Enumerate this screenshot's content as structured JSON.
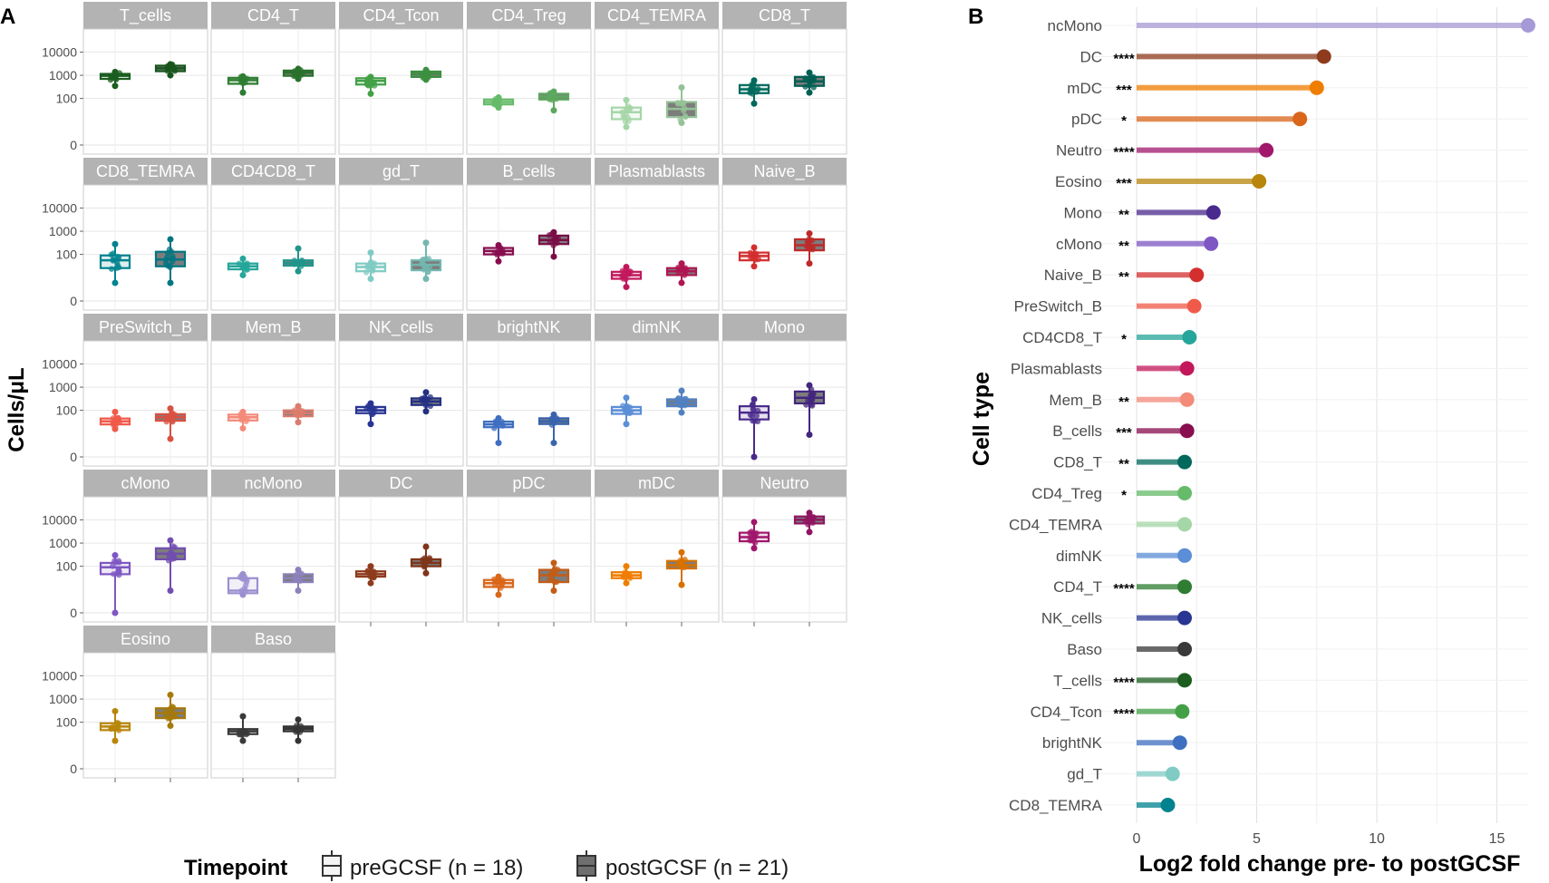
{
  "chart_data": [
    {
      "type": "boxplot",
      "panel_label": "A",
      "ylabel": "Cells/μL",
      "yscale": "pseudo-log",
      "y_ticks": [
        0,
        100,
        1000,
        10000
      ],
      "y_tick_labels": [
        "0",
        "100",
        "1000",
        "10000"
      ],
      "legend": {
        "title": "Timepoint",
        "entries": [
          "preGCSF (n = 18)",
          "postGCSF (n = 21)"
        ]
      },
      "panels": [
        {
          "name": "T_cells",
          "color": "#1b5e20",
          "pre": {
            "q1": 700,
            "med": 950,
            "q3": 1150,
            "lo": 350,
            "hi": 1400
          },
          "post": {
            "q1": 1500,
            "med": 2000,
            "q3": 2600,
            "lo": 1000,
            "hi": 3000
          }
        },
        {
          "name": "CD4_T",
          "color": "#2e7d32",
          "pre": {
            "q1": 430,
            "med": 620,
            "q3": 780,
            "lo": 180,
            "hi": 900
          },
          "post": {
            "q1": 950,
            "med": 1300,
            "q3": 1600,
            "lo": 700,
            "hi": 1900
          }
        },
        {
          "name": "CD4_Tcon",
          "color": "#43a047",
          "pre": {
            "q1": 400,
            "med": 580,
            "q3": 750,
            "lo": 160,
            "hi": 850
          },
          "post": {
            "q1": 850,
            "med": 1150,
            "q3": 1450,
            "lo": 650,
            "hi": 1700
          }
        },
        {
          "name": "CD4_Treg",
          "color": "#66bb6a",
          "pre": {
            "q1": 55,
            "med": 70,
            "q3": 90,
            "lo": 40,
            "hi": 110
          },
          "post": {
            "q1": 90,
            "med": 120,
            "q3": 160,
            "lo": 30,
            "hi": 200
          }
        },
        {
          "name": "CD4_TEMRA",
          "color": "#a5d6a7",
          "pre": {
            "q1": 12,
            "med": 25,
            "q3": 40,
            "lo": 5,
            "hi": 85
          },
          "post": {
            "q1": 15,
            "med": 35,
            "q3": 70,
            "lo": 8,
            "hi": 300
          }
        },
        {
          "name": "CD8_T",
          "color": "#00695c",
          "pre": {
            "q1": 170,
            "med": 250,
            "q3": 380,
            "lo": 60,
            "hi": 600
          },
          "post": {
            "q1": 350,
            "med": 550,
            "q3": 850,
            "lo": 180,
            "hi": 1300
          }
        },
        {
          "name": "CD8_TEMRA",
          "color": "#00838f",
          "pre": {
            "q1": 25,
            "med": 55,
            "q3": 90,
            "lo": 5,
            "hi": 280
          },
          "post": {
            "q1": 30,
            "med": 60,
            "q3": 130,
            "lo": 5,
            "hi": 450
          }
        },
        {
          "name": "CD4CD8_T",
          "color": "#26a69a",
          "pre": {
            "q1": 22,
            "med": 30,
            "q3": 40,
            "lo": 12,
            "hi": 65
          },
          "post": {
            "q1": 32,
            "med": 42,
            "q3": 55,
            "lo": 18,
            "hi": 180
          }
        },
        {
          "name": "gd_T",
          "color": "#80cbc4",
          "pre": {
            "q1": 18,
            "med": 28,
            "q3": 40,
            "lo": 8,
            "hi": 120
          },
          "post": {
            "q1": 20,
            "med": 35,
            "q3": 55,
            "lo": 8,
            "hi": 320
          }
        },
        {
          "name": "B_cells",
          "color": "#880e4f",
          "pre": {
            "q1": 100,
            "med": 140,
            "q3": 190,
            "lo": 50,
            "hi": 250
          },
          "post": {
            "q1": 280,
            "med": 420,
            "q3": 650,
            "lo": 80,
            "hi": 900
          }
        },
        {
          "name": "Plasmablasts",
          "color": "#c2185b",
          "pre": {
            "q1": 8,
            "med": 12,
            "q3": 17,
            "lo": 3,
            "hi": 28
          },
          "post": {
            "q1": 12,
            "med": 18,
            "q3": 25,
            "lo": 5,
            "hi": 40
          }
        },
        {
          "name": "Naive_B",
          "color": "#d32f2f",
          "pre": {
            "q1": 55,
            "med": 85,
            "q3": 120,
            "lo": 30,
            "hi": 200
          },
          "post": {
            "q1": 150,
            "med": 250,
            "q3": 450,
            "lo": 40,
            "hi": 800
          }
        },
        {
          "name": "PreSwitch_B",
          "color": "#f05a4a",
          "pre": {
            "q1": 24,
            "med": 33,
            "q3": 44,
            "lo": 15,
            "hi": 85
          },
          "post": {
            "q1": 35,
            "med": 50,
            "q3": 68,
            "lo": 5,
            "hi": 120
          }
        },
        {
          "name": "Mem_B",
          "color": "#f48a7a",
          "pre": {
            "q1": 36,
            "med": 50,
            "q3": 65,
            "lo": 16,
            "hi": 85
          },
          "post": {
            "q1": 55,
            "med": 75,
            "q3": 100,
            "lo": 30,
            "hi": 150
          }
        },
        {
          "name": "NK_cells",
          "color": "#283593",
          "pre": {
            "q1": 75,
            "med": 100,
            "q3": 140,
            "lo": 25,
            "hi": 200
          },
          "post": {
            "q1": 170,
            "med": 240,
            "q3": 330,
            "lo": 90,
            "hi": 600
          }
        },
        {
          "name": "brightNK",
          "color": "#3f6fc0",
          "pre": {
            "q1": 18,
            "med": 24,
            "q3": 32,
            "lo": 3,
            "hi": 45
          },
          "post": {
            "q1": 25,
            "med": 33,
            "q3": 45,
            "lo": 3,
            "hi": 65
          }
        },
        {
          "name": "dimNK",
          "color": "#5b8ed6",
          "pre": {
            "q1": 70,
            "med": 100,
            "q3": 140,
            "lo": 25,
            "hi": 350
          },
          "post": {
            "q1": 150,
            "med": 210,
            "q3": 300,
            "lo": 80,
            "hi": 700
          }
        },
        {
          "name": "Mono",
          "color": "#4a2a8c",
          "pre": {
            "q1": 40,
            "med": 80,
            "q3": 150,
            "lo": 0,
            "hi": 300
          },
          "post": {
            "q1": 200,
            "med": 350,
            "q3": 650,
            "lo": 8,
            "hi": 1200
          }
        },
        {
          "name": "cMono",
          "color": "#7e57c2",
          "pre": {
            "q1": 45,
            "med": 90,
            "q3": 140,
            "lo": 0,
            "hi": 300
          },
          "post": {
            "q1": 200,
            "med": 350,
            "q3": 600,
            "lo": 8,
            "hi": 1300
          }
        },
        {
          "name": "ncMono",
          "color": "#9c8fd0",
          "pre": {
            "q1": 6,
            "med": 8,
            "q3": 30,
            "lo": 5,
            "hi": 45
          },
          "post": {
            "q1": 20,
            "med": 30,
            "q3": 45,
            "lo": 8,
            "hi": 70
          }
        },
        {
          "name": "DC",
          "color": "#8d3b1c",
          "pre": {
            "q1": 35,
            "med": 45,
            "q3": 60,
            "lo": 18,
            "hi": 100
          },
          "post": {
            "q1": 100,
            "med": 140,
            "q3": 200,
            "lo": 50,
            "hi": 700
          }
        },
        {
          "name": "pDC",
          "color": "#d9661a",
          "pre": {
            "q1": 12,
            "med": 18,
            "q3": 25,
            "lo": 5,
            "hi": 35
          },
          "post": {
            "q1": 20,
            "med": 40,
            "q3": 70,
            "lo": 8,
            "hi": 140
          }
        },
        {
          "name": "mDC",
          "color": "#ef7d00",
          "pre": {
            "q1": 30,
            "med": 40,
            "q3": 55,
            "lo": 18,
            "hi": 100
          },
          "post": {
            "q1": 80,
            "med": 110,
            "q3": 170,
            "lo": 15,
            "hi": 400
          }
        },
        {
          "name": "Neutro",
          "color": "#a0176c",
          "pre": {
            "q1": 1200,
            "med": 1800,
            "q3": 2800,
            "lo": 600,
            "hi": 8000
          },
          "post": {
            "q1": 7000,
            "med": 10000,
            "q3": 14000,
            "lo": 3000,
            "hi": 20000
          }
        },
        {
          "name": "Eosino",
          "color": "#b8860b",
          "pre": {
            "q1": 45,
            "med": 65,
            "q3": 90,
            "lo": 15,
            "hi": 300
          },
          "post": {
            "q1": 150,
            "med": 250,
            "q3": 400,
            "lo": 70,
            "hi": 1500
          }
        },
        {
          "name": "Baso",
          "color": "#3a3a3a",
          "pre": {
            "q1": 30,
            "med": 40,
            "q3": 50,
            "lo": 15,
            "hi": 180
          },
          "post": {
            "q1": 40,
            "med": 52,
            "q3": 65,
            "lo": 15,
            "hi": 130
          }
        }
      ]
    },
    {
      "type": "lollipop",
      "panel_label": "B",
      "ylabel": "Cell type",
      "xlabel": "Log2 fold change pre- to postGCSF",
      "xlim": [
        -1,
        16.3
      ],
      "x_ticks": [
        0,
        5,
        10,
        15
      ],
      "grid": true,
      "items": [
        {
          "name": "ncMono",
          "value": 16.3,
          "sig": "",
          "color": "#a59ad6"
        },
        {
          "name": "DC",
          "value": 7.8,
          "sig": "****",
          "color": "#8d3b1c"
        },
        {
          "name": "mDC",
          "value": 7.5,
          "sig": "***",
          "color": "#ef7d00"
        },
        {
          "name": "pDC",
          "value": 6.8,
          "sig": "*",
          "color": "#d9661a"
        },
        {
          "name": "Neutro",
          "value": 5.4,
          "sig": "****",
          "color": "#a0176c"
        },
        {
          "name": "Eosino",
          "value": 5.1,
          "sig": "***",
          "color": "#b8860b"
        },
        {
          "name": "Mono",
          "value": 3.2,
          "sig": "**",
          "color": "#4a2a8c"
        },
        {
          "name": "cMono",
          "value": 3.1,
          "sig": "**",
          "color": "#7e57c2"
        },
        {
          "name": "Naive_B",
          "value": 2.5,
          "sig": "**",
          "color": "#d32f2f"
        },
        {
          "name": "PreSwitch_B",
          "value": 2.4,
          "sig": "",
          "color": "#f05a4a"
        },
        {
          "name": "CD4CD8_T",
          "value": 2.2,
          "sig": "*",
          "color": "#26a69a"
        },
        {
          "name": "Plasmablasts",
          "value": 2.1,
          "sig": "",
          "color": "#c2185b"
        },
        {
          "name": "Mem_B",
          "value": 2.1,
          "sig": "**",
          "color": "#f48a7a"
        },
        {
          "name": "B_cells",
          "value": 2.1,
          "sig": "***",
          "color": "#880e4f"
        },
        {
          "name": "CD8_T",
          "value": 2.0,
          "sig": "**",
          "color": "#00695c"
        },
        {
          "name": "CD4_Treg",
          "value": 2.0,
          "sig": "*",
          "color": "#66bb6a"
        },
        {
          "name": "CD4_TEMRA",
          "value": 2.0,
          "sig": "",
          "color": "#a5d6a7"
        },
        {
          "name": "dimNK",
          "value": 2.0,
          "sig": "",
          "color": "#5b8ed6"
        },
        {
          "name": "CD4_T",
          "value": 2.0,
          "sig": "****",
          "color": "#2e7d32"
        },
        {
          "name": "NK_cells",
          "value": 2.0,
          "sig": "",
          "color": "#283593"
        },
        {
          "name": "Baso",
          "value": 2.0,
          "sig": "",
          "color": "#3a3a3a"
        },
        {
          "name": "T_cells",
          "value": 2.0,
          "sig": "****",
          "color": "#1b5e20"
        },
        {
          "name": "CD4_Tcon",
          "value": 1.9,
          "sig": "****",
          "color": "#43a047"
        },
        {
          "name": "brightNK",
          "value": 1.8,
          "sig": "",
          "color": "#3f6fc0"
        },
        {
          "name": "gd_T",
          "value": 1.5,
          "sig": "",
          "color": "#80cbc4"
        },
        {
          "name": "CD8_TEMRA",
          "value": 1.3,
          "sig": "",
          "color": "#00838f"
        }
      ]
    }
  ]
}
